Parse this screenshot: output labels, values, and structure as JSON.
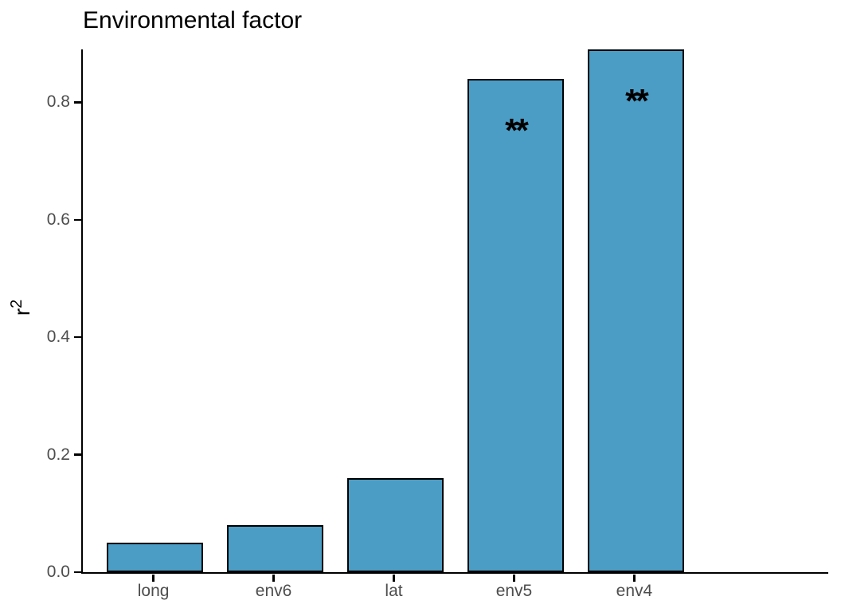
{
  "chart_data": {
    "type": "bar",
    "title": "Environmental factor",
    "ylabel_base": "r",
    "ylabel_sup": "2",
    "xlabel": "",
    "categories": [
      "long",
      "env6",
      "lat",
      "env5",
      "env4"
    ],
    "values": [
      0.05,
      0.08,
      0.16,
      0.84,
      0.89
    ],
    "annotations": [
      "",
      "",
      "",
      "**",
      "**"
    ],
    "ytick_values": [
      0.0,
      0.2,
      0.4,
      0.6,
      0.8
    ],
    "ytick_labels": [
      "0.0",
      "0.2",
      "0.4",
      "0.6",
      "0.8"
    ],
    "ylim": [
      0,
      0.89
    ],
    "grid": false,
    "legend": null,
    "colors": {
      "bar_fill": "#4B9DC5",
      "bar_border": "#000000",
      "axis_line": "#000000",
      "tick_label": "#4D4D4D",
      "title": "#000000",
      "annotation": "#000000",
      "background": "#ffffff"
    }
  }
}
